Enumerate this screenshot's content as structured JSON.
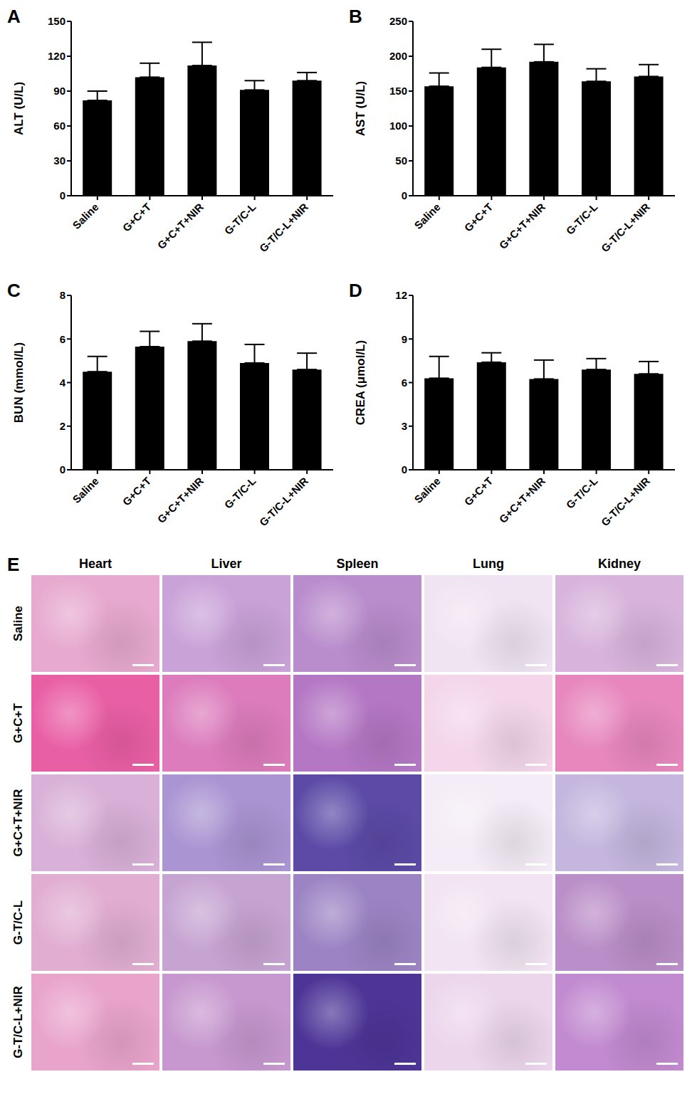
{
  "chart_data": [
    {
      "type": "bar",
      "title": "A",
      "y_label": "ALT (U/L)",
      "categories": [
        "Saline",
        "G+C+T",
        "G+C+T+NIR",
        "G-T/C-L",
        "G-T/C-L+NIR"
      ],
      "values": [
        82,
        102,
        112,
        91,
        99
      ],
      "error": [
        8,
        12,
        20,
        8,
        7
      ],
      "color": "#000000",
      "ylim": [
        0,
        150
      ],
      "yticks": [
        0,
        30,
        60,
        90,
        120,
        150
      ],
      "grid": false
    },
    {
      "type": "bar",
      "title": "B",
      "y_label": "AST (U/L)",
      "categories": [
        "Saline",
        "G+C+T",
        "G+C+T+NIR",
        "G-T/C-L",
        "G-T/C-L+NIR"
      ],
      "values": [
        157,
        184,
        192,
        164,
        171
      ],
      "error": [
        19,
        26,
        25,
        18,
        17
      ],
      "color": "#000000",
      "ylim": [
        0,
        250
      ],
      "yticks": [
        0,
        50,
        100,
        150,
        200,
        250
      ],
      "grid": false
    },
    {
      "type": "bar",
      "title": "C",
      "y_label": "BUN (mmol/L)",
      "categories": [
        "Saline",
        "G+C+T",
        "G+C+T+NIR",
        "G-T/C-L",
        "G-T/C-L+NIR"
      ],
      "values": [
        4.5,
        5.65,
        5.9,
        4.9,
        4.6
      ],
      "error": [
        0.7,
        0.7,
        0.8,
        0.85,
        0.75
      ],
      "color": "#000000",
      "ylim": [
        0,
        8
      ],
      "yticks": [
        0,
        2,
        4,
        6,
        8
      ],
      "grid": false
    },
    {
      "type": "bar",
      "title": "D",
      "y_label": "CREA (μmol/L)",
      "categories": [
        "Saline",
        "G+C+T",
        "G+C+T+NIR",
        "G-T/C-L",
        "G-T/C-L+NIR"
      ],
      "values": [
        6.3,
        7.4,
        6.25,
        6.9,
        6.6
      ],
      "error": [
        1.5,
        0.65,
        1.3,
        0.75,
        0.85
      ],
      "color": "#000000",
      "ylim": [
        0,
        12
      ],
      "yticks": [
        0,
        3,
        6,
        9,
        12
      ],
      "grid": false
    }
  ],
  "panel_e": {
    "title": "E",
    "columns": [
      "Heart",
      "Liver",
      "Spleen",
      "Lung",
      "Kidney"
    ],
    "rows": [
      "Saline",
      "G+C+T",
      "G+C+T+NIR",
      "G-T/C-L",
      "G-T/C-L+NIR"
    ]
  }
}
